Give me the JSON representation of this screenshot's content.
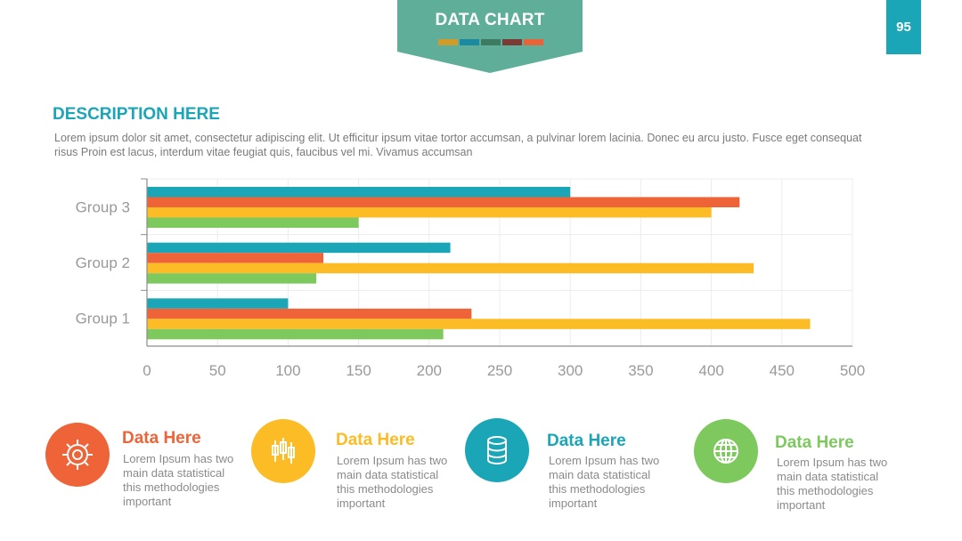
{
  "header": {
    "title": "DATA CHART",
    "banner_color": "#5fae9a",
    "swatch_colors": [
      "#d19b2a",
      "#1a8aa0",
      "#3d7a62",
      "#7d3a34",
      "#e8633a"
    ]
  },
  "page_number": "95",
  "description": {
    "heading": "DESCRIPTION HERE",
    "text": "Lorem ipsum dolor sit amet, consectetur adipiscing elit. Ut efficitur ipsum vitae tortor accumsan, a pulvinar lorem lacinia. Donec eu arcu justo. Fusce eget consequat risus Proin est lacus, interdum vitae feugiat quis, faucibus vel mi.  Vivamus accumsan"
  },
  "chart_data": {
    "type": "bar",
    "orientation": "horizontal",
    "categories": [
      "Group 1",
      "Group 2",
      "Group 3"
    ],
    "series": [
      {
        "color": "#1aa6b7",
        "values": [
          100,
          215,
          300
        ]
      },
      {
        "color": "#ee6337",
        "values": [
          230,
          125,
          420
        ]
      },
      {
        "color": "#fbbc25",
        "values": [
          470,
          430,
          400
        ]
      },
      {
        "color": "#7dc95e",
        "values": [
          210,
          120,
          150
        ]
      }
    ],
    "xlim": [
      0,
      500
    ],
    "xticks": [
      "0",
      "50",
      "100",
      "150",
      "200",
      "250",
      "300",
      "350",
      "400",
      "450",
      "500"
    ],
    "grid": true,
    "legend": "none"
  },
  "info_items": [
    {
      "icon": "gear-icon",
      "color": "#ee6337",
      "title": "Data Here",
      "text": "Lorem Ipsum has two main data statistical this methodologies important"
    },
    {
      "icon": "candlestick-icon",
      "color": "#fbbc25",
      "title": "Data Here",
      "text": "Lorem Ipsum has two main data statistical this methodologies important"
    },
    {
      "icon": "database-icon",
      "color": "#1aa6b7",
      "title": "Data Here",
      "text": "Lorem Ipsum has two main data statistical this methodologies important"
    },
    {
      "icon": "globe-icon",
      "color": "#7dc95e",
      "title": "Data Here",
      "text": "Lorem Ipsum has two main data statistical this methodologies important"
    }
  ]
}
